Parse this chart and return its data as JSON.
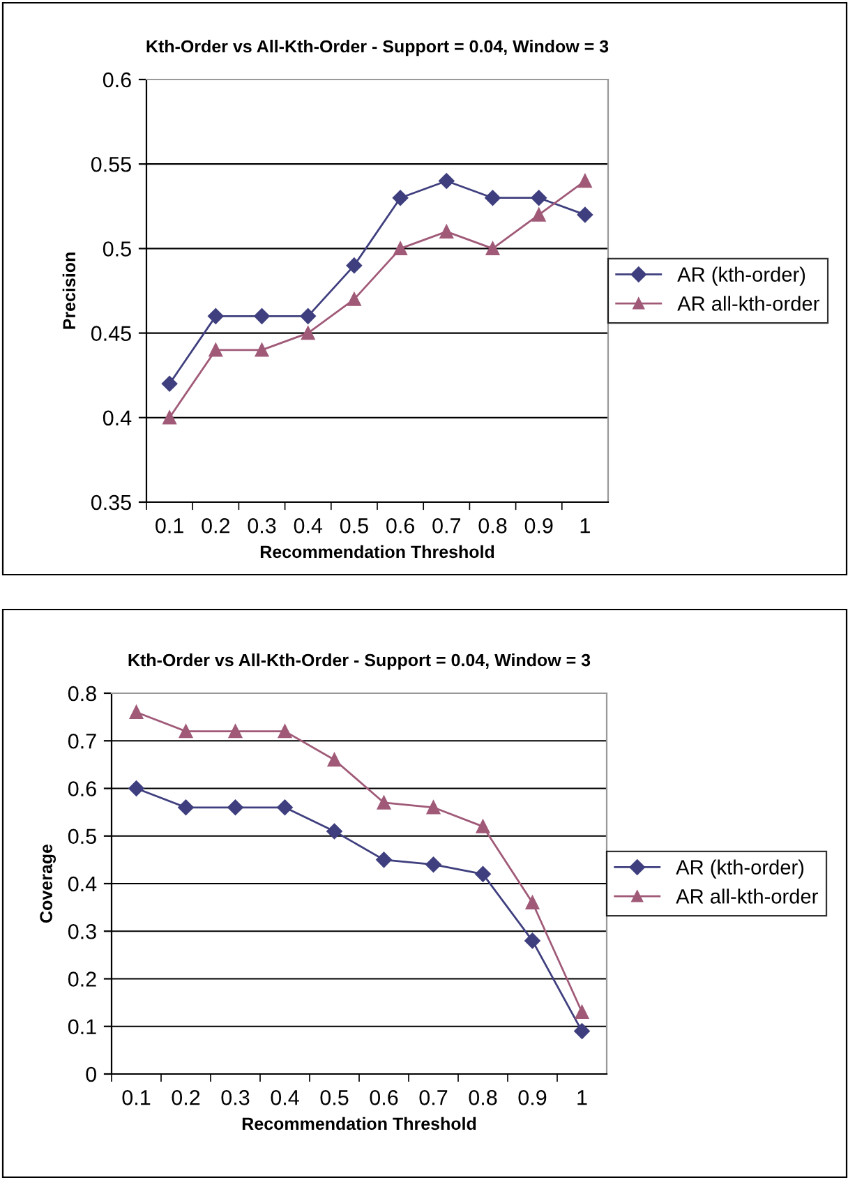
{
  "chart_data": [
    {
      "type": "line",
      "title": "Kth-Order vs All-Kth-Order - Support = 0.04, Window = 3",
      "xlabel": "Recommendation Threshold",
      "ylabel": "Precision",
      "categories": [
        "0.1",
        "0.2",
        "0.3",
        "0.4",
        "0.5",
        "0.6",
        "0.7",
        "0.8",
        "0.9",
        "1"
      ],
      "series": [
        {
          "name": "AR (kth-order)",
          "color": "#3f3f7f",
          "marker": "diamond",
          "values": [
            0.42,
            0.46,
            0.46,
            0.46,
            0.49,
            0.53,
            0.54,
            0.53,
            0.53,
            0.52
          ]
        },
        {
          "name": "AR all-kth-order",
          "color": "#a05a78",
          "marker": "triangle",
          "values": [
            0.4,
            0.44,
            0.44,
            0.45,
            0.47,
            0.5,
            0.51,
            0.5,
            0.52,
            0.54
          ]
        }
      ],
      "ylim": [
        0.35,
        0.6
      ],
      "yticks": [
        0.35,
        0.4,
        0.45,
        0.5,
        0.55,
        0.6
      ],
      "grid": "y",
      "legend": "right"
    },
    {
      "type": "line",
      "title": "Kth-Order vs All-Kth-Order - Support = 0.04, Window = 3",
      "xlabel": "Recommendation Threshold",
      "ylabel": "Coverage",
      "categories": [
        "0.1",
        "0.2",
        "0.3",
        "0.4",
        "0.5",
        "0.6",
        "0.7",
        "0.8",
        "0.9",
        "1"
      ],
      "series": [
        {
          "name": "AR (kth-order)",
          "color": "#3f3f7f",
          "marker": "diamond",
          "values": [
            0.6,
            0.56,
            0.56,
            0.56,
            0.51,
            0.45,
            0.44,
            0.42,
            0.28,
            0.09
          ]
        },
        {
          "name": "AR all-kth-order",
          "color": "#a05a78",
          "marker": "triangle",
          "values": [
            0.76,
            0.72,
            0.72,
            0.72,
            0.66,
            0.57,
            0.56,
            0.52,
            0.36,
            0.13
          ]
        }
      ],
      "ylim": [
        0,
        0.8
      ],
      "yticks": [
        0,
        0.1,
        0.2,
        0.3,
        0.4,
        0.5,
        0.6,
        0.7,
        0.8
      ],
      "grid": "y",
      "legend": "right"
    }
  ]
}
